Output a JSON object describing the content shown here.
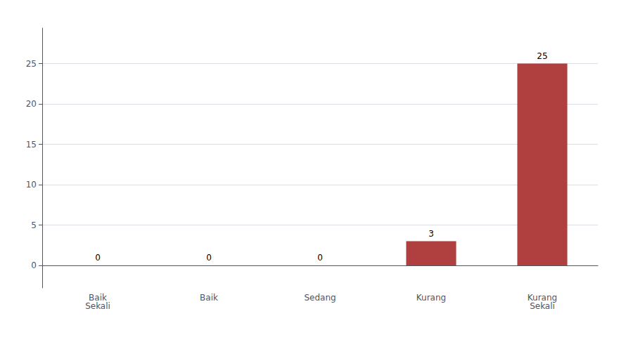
{
  "chart_data": {
    "type": "bar",
    "categories": [
      "Baik\nSekali",
      "Baik",
      "Sedang",
      "Kurang",
      "Kurang\nSekali"
    ],
    "values": [
      0,
      0,
      0,
      3,
      25
    ],
    "color": "#b04040",
    "ylim": [
      -2.772,
      29.4
    ],
    "yticks": [
      0,
      5,
      10,
      15,
      20,
      25
    ],
    "grid": true,
    "data_labels": true
  }
}
